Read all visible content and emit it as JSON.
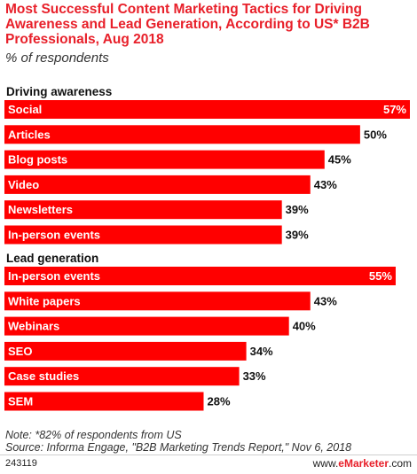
{
  "chart_data": {
    "type": "bar",
    "orientation": "horizontal",
    "title": "Most Successful Content Marketing Tactics for Driving Awareness and Lead Generation, According to US* B2B Professionals, Aug 2018",
    "subtitle": "% of respondents",
    "unit": "%",
    "bar_color": "#ff0000",
    "groups": [
      {
        "name": "Driving awareness",
        "categories": [
          "Social",
          "Articles",
          "Blog posts",
          "Video",
          "Newsletters",
          "In-person events"
        ],
        "values": [
          57,
          50,
          45,
          43,
          39,
          39
        ]
      },
      {
        "name": "Lead generation",
        "categories": [
          "In-person events",
          "White papers",
          "Webinars",
          "SEO",
          "Case studies",
          "SEM"
        ],
        "values": [
          55,
          43,
          40,
          34,
          33,
          28
        ]
      }
    ]
  },
  "note": "Note: *82% of respondents from US",
  "source": "Source: Informa Engage, \"B2B Marketing Trends Report,\" Nov 6, 2018",
  "footer": {
    "chart_id": "243119",
    "brand_prefix": "www.",
    "brand_name": "eMarketer",
    "brand_suffix": ".com"
  }
}
